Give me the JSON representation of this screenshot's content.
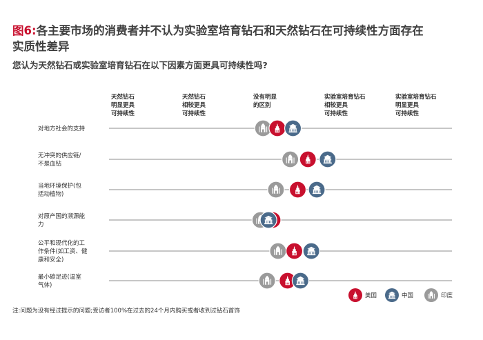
{
  "title": {
    "fig_label": "图6:",
    "line1_rest": "各主要市场的消费者并不认为实验室培育钻石和天然钻石在可持续性方面存在",
    "line2": "实质性差异"
  },
  "subtitle": "您认为天然钻石或实验室培育钻石在以下因素方面更具可持续性吗?",
  "footnote": "注:问题为没有经过提示的问题;受访者100%在过去的24个月内购买或者收到过钻石首饰",
  "colors": {
    "us": "#c8102e",
    "china": "#4a6a8a",
    "india": "#9a9a9a",
    "axis": "#8c8c8c"
  },
  "chart_data": {
    "type": "scatter",
    "scale_min": 1,
    "scale_max": 5,
    "columns": [
      [
        "天然钻石",
        "明显更具",
        "可持续性"
      ],
      [
        "天然钻石",
        "相较更具",
        "可持续性"
      ],
      [
        "没有明显",
        "的区别"
      ],
      [
        "实验室培育钻石",
        "相较更具",
        "可持续性"
      ],
      [
        "实验室培育钻石",
        "明显更具",
        "可持续性"
      ]
    ],
    "rows": [
      [
        "对地方社会的支持"
      ],
      [
        "无冲突的供应链/",
        "不是血钻"
      ],
      [
        "当地环境保护(包",
        "括动植物)"
      ],
      [
        "对原产国的溯源能",
        "力"
      ],
      [
        "公平和现代化的工",
        "作条件(如工资、健",
        "康和安全)"
      ],
      [
        "最小碳足迹(温室",
        "气体)"
      ]
    ],
    "series": [
      {
        "name": "美国",
        "icon": "us-landmark-icon",
        "values": [
          3.05,
          3.5,
          3.35,
          2.98,
          3.3,
          3.2
        ]
      },
      {
        "name": "中国",
        "icon": "china-landmark-icon",
        "values": [
          3.28,
          3.79,
          3.63,
          2.92,
          3.55,
          3.39
        ]
      },
      {
        "name": "印度",
        "icon": "india-landmark-icon",
        "values": [
          2.84,
          3.24,
          3.03,
          2.8,
          3.06,
          2.9
        ]
      }
    ],
    "legend_position": "bottom-right"
  }
}
